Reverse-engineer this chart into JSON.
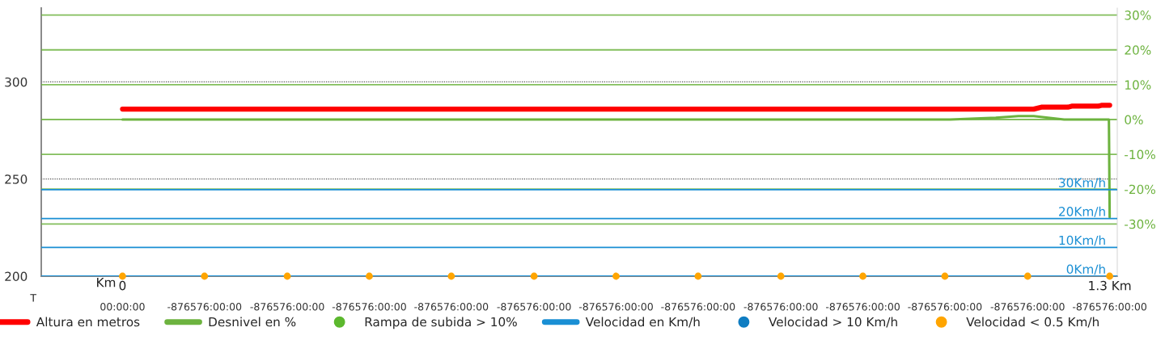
{
  "chart_data": {
    "type": "line",
    "xlabel": "Km",
    "xlim": [
      -0.107,
      1.31
    ],
    "xticks": [
      0,
      {
        "value": 1.3,
        "label": "1.3 Km"
      }
    ],
    "ylim": [
      200,
      338
    ],
    "yticks": [
      200,
      250,
      300
    ],
    "y2lim": [
      -45,
      32
    ],
    "y2ticks": [
      {
        "value": 30,
        "label": "30%"
      },
      {
        "value": 20,
        "label": "20%"
      },
      {
        "value": 10,
        "label": "10%"
      },
      {
        "value": 0,
        "label": "0%"
      },
      {
        "value": -10,
        "label": "-10%"
      },
      {
        "value": -20,
        "label": "-20%"
      },
      {
        "value": -30,
        "label": "-30%"
      }
    ],
    "y3lim": [
      0,
      93
    ],
    "y3ticks": [
      {
        "value": 0,
        "label": "0Km/h"
      },
      {
        "value": 10,
        "label": "10Km/h"
      },
      {
        "value": 20,
        "label": "20Km/h"
      },
      {
        "value": 30,
        "label": "30Km/h"
      }
    ],
    "grid": "y",
    "legend": "bottom",
    "annotations": [
      "T",
      {
        "text": "00:00:00",
        "x": 0,
        "y": 200
      },
      {
        "text": "-876576:00:00",
        "x": 0.108,
        "y": 200
      },
      {
        "text": "-876576:00:00",
        "x": 0.217,
        "y": 200
      },
      {
        "text": "-876576:00:00",
        "x": 0.325,
        "y": 200
      },
      {
        "text": "-876576:00:00",
        "x": 0.433,
        "y": 200
      },
      {
        "text": "-876576:00:00",
        "x": 0.542,
        "y": 200
      },
      {
        "text": "-876576:00:00",
        "x": 0.65,
        "y": 200
      },
      {
        "text": "-876576:00:00",
        "x": 0.758,
        "y": 200
      },
      {
        "text": "-876576:00:00",
        "x": 0.867,
        "y": 200
      },
      {
        "text": "-876576:00:00",
        "x": 0.975,
        "y": 200
      },
      {
        "text": "-876576:00:00",
        "x": 1.083,
        "y": 200
      },
      {
        "text": "-876576:00:00",
        "x": 1.192,
        "y": 200
      },
      {
        "text": "-876576:00:00",
        "x": 1.3,
        "y": 200
      }
    ],
    "series": [
      {
        "name": "Altura en metros",
        "color": "#ff0000",
        "x": [
          0,
          1.2,
          1.21,
          1.245,
          1.25,
          1.285,
          1.29,
          1.3
        ],
        "values": [
          286,
          286,
          287,
          287,
          287.5,
          287.5,
          288,
          288
        ]
      },
      {
        "name": "Desnivel en %",
        "color": "#6db33f",
        "axis": "y2",
        "x": [
          0,
          1.09,
          1.15,
          1.18,
          1.2,
          1.24,
          1.299,
          1.3
        ],
        "values": [
          0,
          0,
          0.5,
          1,
          1,
          0,
          0,
          -28
        ]
      },
      {
        "name": "Rampa de subida > 10%",
        "type": "scatter",
        "marker": "circle",
        "color": "#5cb82e",
        "axis": "y2"
      },
      {
        "name": "Velocidad en Km/h",
        "color": "#1a8fd4",
        "axis": "y3"
      },
      {
        "name": "Velocidad > 10 Km/h",
        "type": "scatter",
        "marker": "circle",
        "color": "#0f7dc2",
        "axis": "y3"
      },
      {
        "name": "Velocidad < 0.5 Km/h",
        "type": "scatter",
        "marker": "circle",
        "color": "#ffa500",
        "axis": "y3",
        "x": [
          0,
          0.108,
          0.217,
          0.325,
          0.433,
          0.542,
          0.65,
          0.758,
          0.867,
          0.975,
          1.083,
          1.192,
          1.3
        ],
        "values": [
          0,
          0,
          0,
          0,
          0,
          0,
          0,
          0,
          0,
          0,
          0,
          0,
          0
        ]
      }
    ]
  }
}
